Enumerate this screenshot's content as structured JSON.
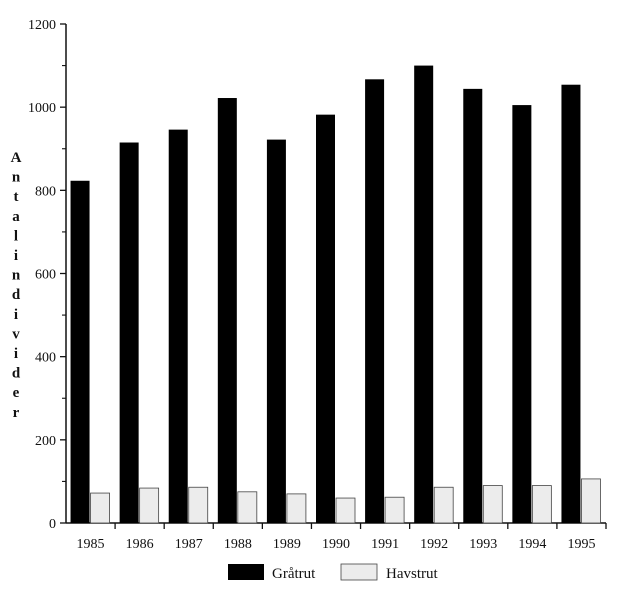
{
  "chart_data": {
    "type": "bar",
    "ylabel": "Antal individer",
    "categories": [
      "1985",
      "1986",
      "1987",
      "1988",
      "1989",
      "1990",
      "1991",
      "1992",
      "1993",
      "1994",
      "1995"
    ],
    "series": [
      {
        "name": "Gråtrut",
        "color": "#000000",
        "values": [
          823,
          915,
          946,
          1022,
          922,
          982,
          1067,
          1100,
          1044,
          1005,
          1054
        ]
      },
      {
        "name": "Havstrut",
        "color": "#ececec",
        "values": [
          72,
          84,
          86,
          75,
          70,
          60,
          62,
          86,
          90,
          90,
          106
        ]
      }
    ],
    "ylim": [
      0,
      1200
    ],
    "yticks": [
      0,
      200,
      400,
      600,
      800,
      1000,
      1200
    ],
    "ytick_labels": [
      "0",
      "200",
      "400",
      "600",
      "800",
      "1000",
      "1200"
    ],
    "grid": false,
    "legend_position": "bottom"
  }
}
